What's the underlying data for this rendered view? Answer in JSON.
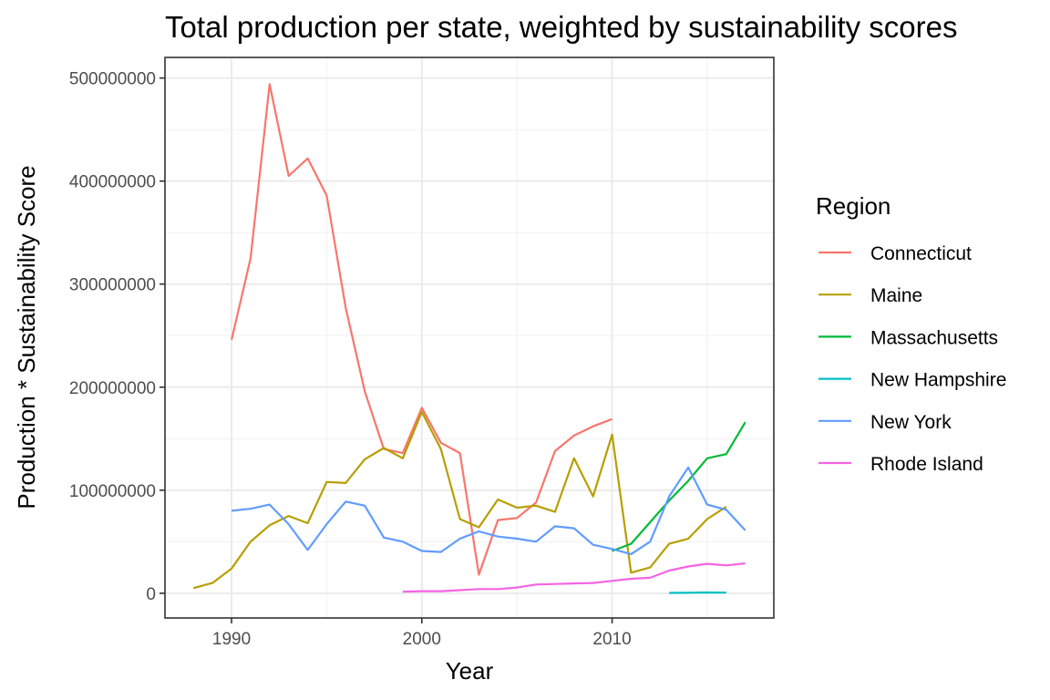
{
  "chart_data": {
    "type": "line",
    "title": "Total production per state, weighted by sustainability scores",
    "xlabel": "Year",
    "ylabel": "Production * Sustainability Score",
    "xlim": [
      1986.5,
      2018.5
    ],
    "ylim": [
      -24000000,
      520000000
    ],
    "xticks": [
      1990,
      2000,
      2010
    ],
    "xtick_labels": [
      "1990",
      "2000",
      "2010"
    ],
    "yticks": [
      0,
      100000000,
      200000000,
      300000000,
      400000000,
      500000000
    ],
    "ytick_labels": [
      "0",
      "100000000",
      "200000000",
      "300000000",
      "400000000",
      "500000000"
    ],
    "grid": true,
    "legend_title": "Region",
    "legend_position": "right",
    "series": [
      {
        "name": "Connecticut",
        "color": "#F8766D",
        "x": [
          1990,
          1991,
          1992,
          1993,
          1994,
          1995,
          1996,
          1997,
          1998,
          1999,
          2000,
          2001,
          2002,
          2003,
          2004,
          2005,
          2006,
          2007,
          2008,
          2009,
          2010
        ],
        "y": [
          246000000,
          325000000,
          494000000,
          405000000,
          422000000,
          386000000,
          277000000,
          196000000,
          140000000,
          136000000,
          180000000,
          146000000,
          136000000,
          18000000,
          71000000,
          73000000,
          88000000,
          138000000,
          153000000,
          162000000,
          169000000
        ]
      },
      {
        "name": "Maine",
        "color": "#B79F00",
        "x": [
          1988,
          1989,
          1990,
          1991,
          1992,
          1993,
          1994,
          1995,
          1996,
          1997,
          1998,
          1999,
          2000,
          2001,
          2002,
          2003,
          2004,
          2005,
          2006,
          2007,
          2008,
          2009,
          2010,
          2011,
          2012,
          2013,
          2014,
          2015,
          2016
        ],
        "y": [
          5000000,
          10000000,
          24000000,
          50000000,
          66000000,
          75000000,
          68000000,
          108000000,
          107000000,
          130000000,
          141000000,
          131000000,
          176000000,
          140000000,
          72000000,
          64000000,
          91000000,
          83000000,
          85000000,
          79000000,
          131000000,
          94000000,
          154000000,
          20000000,
          25000000,
          48000000,
          53000000,
          72000000,
          84000000
        ]
      },
      {
        "name": "Massachusetts",
        "color": "#00BA38",
        "x": [
          2010,
          2011,
          2012,
          2013,
          2014,
          2015,
          2016,
          2017
        ],
        "y": [
          41000000,
          48000000,
          69000000,
          90000000,
          109000000,
          131000000,
          135000000,
          166000000
        ]
      },
      {
        "name": "New Hampshire",
        "color": "#00BFC4",
        "x": [
          2013,
          2014,
          2015,
          2016
        ],
        "y": [
          300000,
          500000,
          800000,
          600000
        ]
      },
      {
        "name": "New York",
        "color": "#619CFF",
        "x": [
          1990,
          1991,
          1992,
          1993,
          1994,
          1995,
          1996,
          1997,
          1998,
          1999,
          2000,
          2001,
          2002,
          2003,
          2004,
          2005,
          2006,
          2007,
          2008,
          2009,
          2010,
          2011,
          2012,
          2013,
          2014,
          2015,
          2016,
          2017
        ],
        "y": [
          80000000,
          82000000,
          86000000,
          67000000,
          42000000,
          67000000,
          89000000,
          85000000,
          54000000,
          50000000,
          41000000,
          40000000,
          53000000,
          60000000,
          55000000,
          53000000,
          50000000,
          65000000,
          63000000,
          47000000,
          43000000,
          38000000,
          50000000,
          94000000,
          122000000,
          86000000,
          81000000,
          61000000
        ]
      },
      {
        "name": "Rhode Island",
        "color": "#F564E3",
        "x": [
          1999,
          2000,
          2001,
          2002,
          2003,
          2004,
          2005,
          2006,
          2007,
          2008,
          2009,
          2010,
          2011,
          2012,
          2013,
          2014,
          2015,
          2016,
          2017
        ],
        "y": [
          1500000,
          2000000,
          2000000,
          3000000,
          4000000,
          4000000,
          5500000,
          8500000,
          9000000,
          9500000,
          10000000,
          12000000,
          14000000,
          15000000,
          22000000,
          26000000,
          28500000,
          27000000,
          29000000
        ]
      }
    ]
  }
}
